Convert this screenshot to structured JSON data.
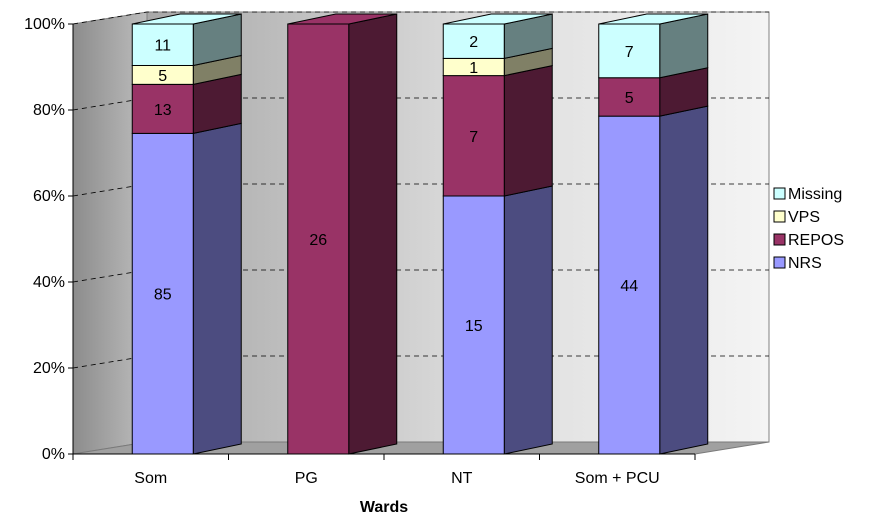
{
  "chart_data": {
    "type": "bar",
    "stacked": "percent",
    "style": "3d-column",
    "xlabel": "Wards",
    "ylabel": "",
    "ylim": [
      0,
      100
    ],
    "yticks": [
      "0%",
      "20%",
      "40%",
      "60%",
      "80%",
      "100%"
    ],
    "categories": [
      "Som",
      "PG",
      "NT",
      "Som + PCU"
    ],
    "series": [
      {
        "name": "NRS",
        "values": [
          85,
          0,
          15,
          44
        ],
        "color": "#9999ff",
        "sideColor": "#4c4c80"
      },
      {
        "name": "REPOS",
        "values": [
          13,
          26,
          7,
          5
        ],
        "color": "#993366",
        "sideColor": "#4d1a33"
      },
      {
        "name": "VPS",
        "values": [
          5,
          0,
          1,
          0
        ],
        "color": "#ffffcc",
        "sideColor": "#808066"
      },
      {
        "name": "Missing",
        "values": [
          11,
          0,
          2,
          7
        ],
        "color": "#ccffff",
        "sideColor": "#668080"
      }
    ],
    "legend": {
      "position": "right",
      "order": [
        "Missing",
        "VPS",
        "REPOS",
        "NRS"
      ]
    },
    "grid": "dashed"
  }
}
